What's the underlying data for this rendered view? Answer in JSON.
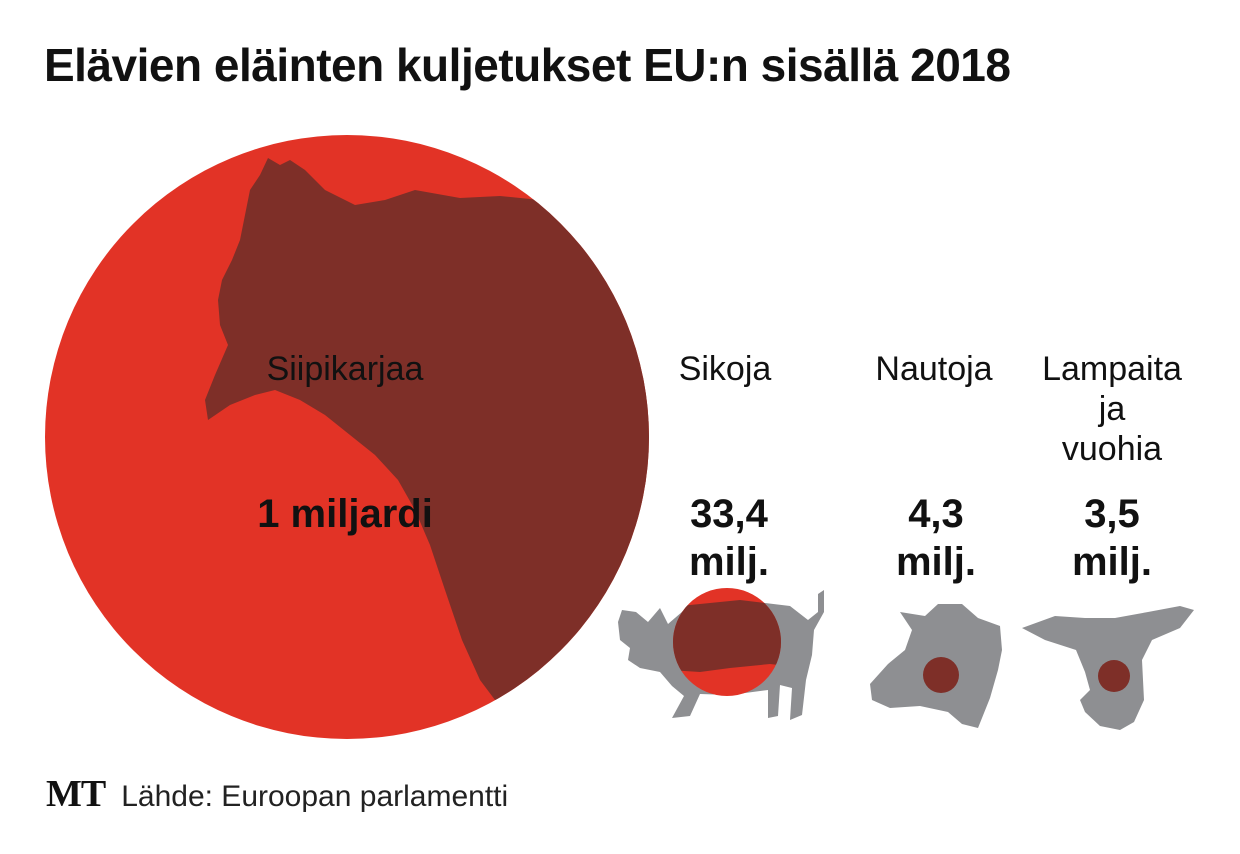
{
  "title": "Elävien eläinten kuljetukset EU:n sisällä 2018",
  "colors": {
    "circle": "#e23326",
    "chicken_overlay": "#7e2f28",
    "animal_silhouette": "#8e8f92",
    "small_dot": "#7e2f28"
  },
  "chart_data": {
    "type": "bubble",
    "title": "Elävien eläinten kuljetukset EU:n sisällä 2018",
    "unit": "eläintä",
    "categories": [
      {
        "name": "Siipikarjaa",
        "value": 1000000000,
        "value_label": [
          "1 miljardi"
        ],
        "icon": "chicken-icon"
      },
      {
        "name": "Sikoja",
        "value": 33400000,
        "value_label": [
          "33,4",
          "milj."
        ],
        "icon": "pig-icon"
      },
      {
        "name": "Nautoja",
        "value": 4300000,
        "value_label": [
          "4,3",
          "milj."
        ],
        "icon": "cow-head-icon"
      },
      {
        "name": "Lampaita ja vuohia",
        "value": 3500000,
        "value_label": [
          "3,5",
          "milj."
        ],
        "icon": "sheep-head-icon"
      }
    ]
  },
  "footer": {
    "logo": "MT",
    "source": "Lähde: Euroopan parlamentti"
  }
}
